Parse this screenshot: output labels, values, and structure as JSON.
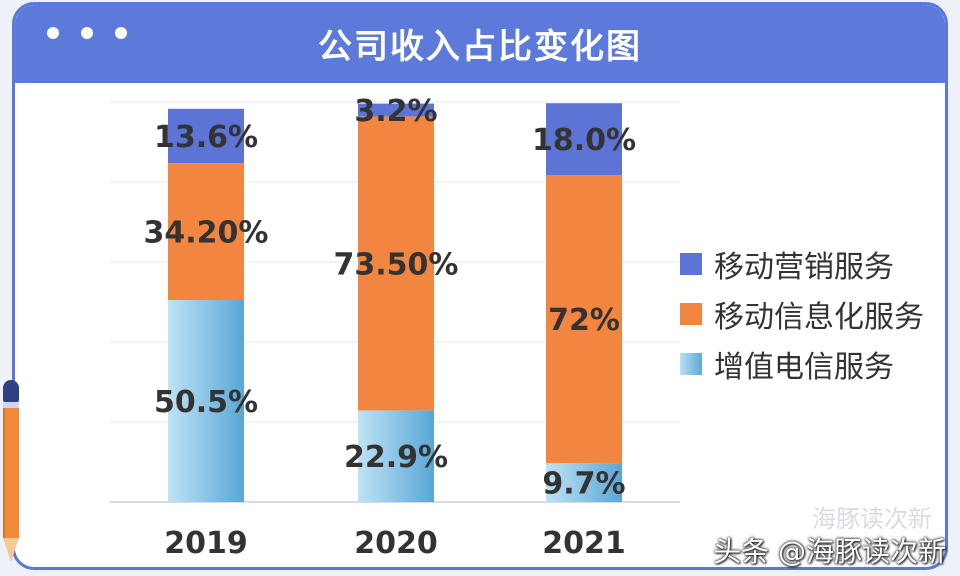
{
  "title": "公司收入占比变化图",
  "colors": {
    "header": "#5b7ad9",
    "mobile_marketing": "#5b74d6",
    "mobile_info": "#f28540",
    "value_added": "#8cc8e8"
  },
  "chart_data": {
    "type": "bar",
    "stacked": true,
    "title": "公司收入占比变化图",
    "categories": [
      "2019",
      "2020",
      "2021"
    ],
    "series": [
      {
        "name": "增值电信服务",
        "values": [
          50.5,
          22.9,
          9.7
        ],
        "labels": [
          "50.5%",
          "22.9%",
          "9.7%"
        ],
        "color": "#8cc8e8"
      },
      {
        "name": "移动信息化服务",
        "values": [
          34.2,
          73.5,
          72.0
        ],
        "labels": [
          "34.20%",
          "73.50%",
          "72%"
        ],
        "color": "#f28540"
      },
      {
        "name": "移动营销服务",
        "values": [
          13.6,
          3.2,
          18.0
        ],
        "labels": [
          "13.6%",
          "3.2%",
          "18.0%"
        ],
        "color": "#5b74d6"
      }
    ],
    "ylim": [
      0,
      100
    ],
    "grid": true,
    "legend_position": "right"
  },
  "legend": [
    {
      "label": "移动营销服务",
      "color": "#5b74d6"
    },
    {
      "label": "移动信息化服务",
      "color": "#f28540"
    },
    {
      "label": "增值电信服务",
      "color": "#8cc8e8"
    }
  ],
  "watermark": "头条 @海豚读次新",
  "watermark_faint": "海豚读次新"
}
